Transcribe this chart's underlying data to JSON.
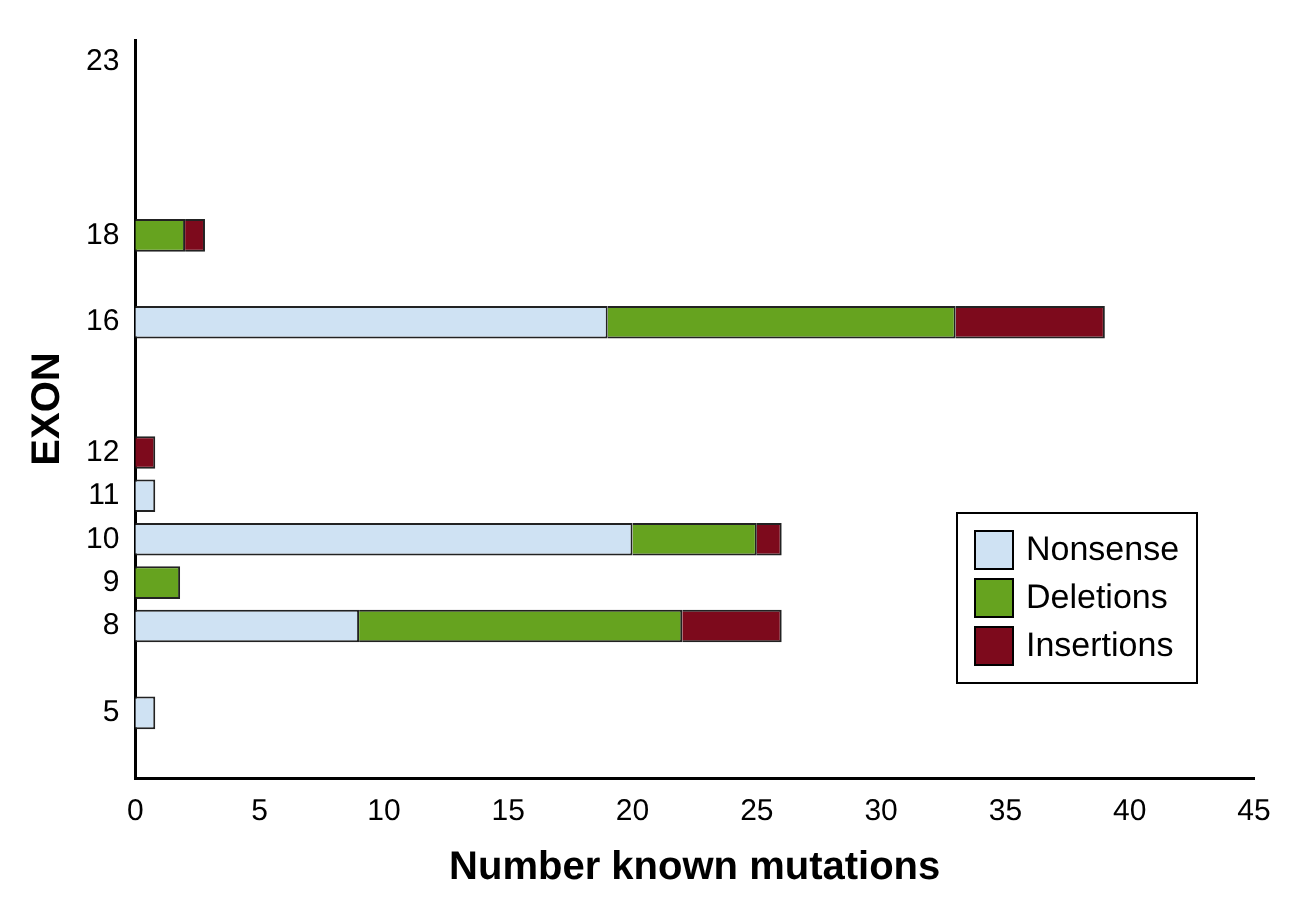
{
  "chart_data": {
    "type": "bar",
    "orientation": "horizontal",
    "stacked": true,
    "xlabel": "Number known mutations",
    "ylabel": "EXON",
    "categories": [
      "23",
      null,
      null,
      null,
      "18",
      null,
      "16",
      null,
      null,
      "12",
      "11",
      "10",
      "9",
      "8",
      null,
      "5",
      null
    ],
    "series": [
      {
        "name": "Nonsense",
        "color": "#cfe2f3",
        "values": [
          null,
          null,
          null,
          null,
          null,
          null,
          19,
          null,
          null,
          null,
          0.8,
          20,
          null,
          9,
          null,
          0.8,
          null
        ]
      },
      {
        "name": "Deletions",
        "color": "#66a31f",
        "values": [
          null,
          null,
          null,
          null,
          2,
          null,
          14,
          null,
          null,
          null,
          null,
          5,
          1.8,
          13,
          null,
          null,
          null
        ]
      },
      {
        "name": "Insertions",
        "color": "#7d0a1c",
        "values": [
          null,
          null,
          null,
          null,
          0.8,
          null,
          6,
          null,
          null,
          0.8,
          null,
          1,
          null,
          4,
          null,
          null,
          null
        ]
      }
    ],
    "xlim": [
      0,
      45
    ],
    "xticks": [
      0,
      5,
      10,
      15,
      20,
      25,
      30,
      35,
      40,
      45
    ],
    "grid": false,
    "legend": "bottom right"
  }
}
